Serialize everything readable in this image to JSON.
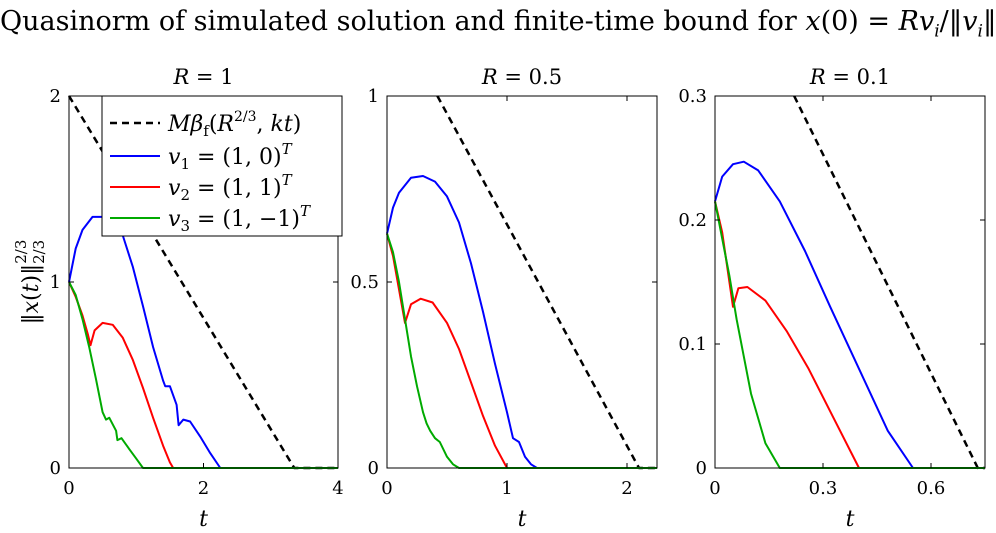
{
  "figure": {
    "title": "Quasinorm of simulated solution and finite-time bound for x(0) = Rvᵢ/‖vᵢ‖₂/₃",
    "ylabel": "‖x(t)‖₂/₃²ᐟ³",
    "xlabel": "t"
  },
  "legend": {
    "placement": "top-right of first panel",
    "entries": [
      {
        "label": "Mβf(R²ᐟ³, kt)",
        "color": "#000000",
        "style": "dashed"
      },
      {
        "label": "v₁ = (1, 0)ᵀ",
        "color": "#0000ff",
        "style": "solid"
      },
      {
        "label": "v₂ = (1, 1)ᵀ",
        "color": "#ff0000",
        "style": "solid"
      },
      {
        "label": "v₃ = (1, −1)ᵀ",
        "color": "#00aa00",
        "style": "solid"
      }
    ]
  },
  "chart_data": [
    {
      "type": "line",
      "title": "R = 1",
      "xlabel": "t",
      "ylabel": "‖x(t)‖₂/₃²ᐟ³",
      "xlim": [
        0,
        4
      ],
      "ylim": [
        0,
        2
      ],
      "xticks": [
        0,
        2,
        4
      ],
      "xticklabels": [
        "0",
        "2",
        "4"
      ],
      "yticks": [
        0,
        1,
        2
      ],
      "yticklabels": [
        "0",
        "1",
        "2"
      ],
      "series": [
        {
          "name": "Mβf(R²ᐟ³, kt)",
          "color": "#000000",
          "dashed": true,
          "x": [
            0,
            3.35,
            4
          ],
          "y": [
            2.0,
            0,
            0
          ]
        },
        {
          "name": "v₁ = (1, 0)ᵀ",
          "color": "#0000ff",
          "x": [
            0,
            0.1,
            0.2,
            0.35,
            0.5,
            0.65,
            0.8,
            0.95,
            1.1,
            1.25,
            1.4,
            1.43,
            1.5,
            1.6,
            1.63,
            1.7,
            1.8,
            1.95,
            2.1,
            2.25,
            2.3,
            4
          ],
          "y": [
            1.0,
            1.18,
            1.28,
            1.35,
            1.35,
            1.32,
            1.25,
            1.08,
            0.87,
            0.65,
            0.47,
            0.44,
            0.44,
            0.34,
            0.23,
            0.26,
            0.25,
            0.17,
            0.08,
            0.0,
            0,
            0
          ]
        },
        {
          "name": "v₂ = (1, 1)ᵀ",
          "color": "#ff0000",
          "x": [
            0,
            0.1,
            0.2,
            0.28,
            0.32,
            0.38,
            0.5,
            0.65,
            0.8,
            0.95,
            1.1,
            1.25,
            1.4,
            1.5,
            1.55,
            4
          ],
          "y": [
            1.0,
            0.92,
            0.82,
            0.72,
            0.66,
            0.74,
            0.78,
            0.77,
            0.7,
            0.58,
            0.43,
            0.27,
            0.12,
            0.03,
            0.0,
            0
          ]
        },
        {
          "name": "v₃ = (1, −1)ᵀ",
          "color": "#00aa00",
          "x": [
            0,
            0.1,
            0.2,
            0.3,
            0.4,
            0.5,
            0.55,
            0.6,
            0.7,
            0.72,
            0.78,
            0.9,
            1.0,
            1.1,
            4
          ],
          "y": [
            1.0,
            0.93,
            0.8,
            0.65,
            0.48,
            0.3,
            0.26,
            0.27,
            0.2,
            0.15,
            0.16,
            0.1,
            0.05,
            0.0,
            0
          ]
        }
      ]
    },
    {
      "type": "line",
      "title": "R = 0.5",
      "xlabel": "t",
      "xlim": [
        0,
        2.25
      ],
      "ylim": [
        0,
        1
      ],
      "xticks": [
        0,
        1,
        2
      ],
      "xticklabels": [
        "0",
        "1",
        "2"
      ],
      "yticks": [
        0,
        0.5,
        1
      ],
      "yticklabels": [
        "0",
        "0.5",
        "1"
      ],
      "series": [
        {
          "name": "Mβf(R²ᐟ³, kt)",
          "color": "#000000",
          "dashed": true,
          "x": [
            0.42,
            2.1,
            2.25
          ],
          "y": [
            1.0,
            0,
            0
          ]
        },
        {
          "name": "v₁ = (1, 0)ᵀ",
          "color": "#0000ff",
          "x": [
            0,
            0.05,
            0.1,
            0.2,
            0.3,
            0.4,
            0.5,
            0.6,
            0.7,
            0.8,
            0.9,
            1.0,
            1.05,
            1.1,
            1.15,
            1.2,
            1.25,
            2.25
          ],
          "y": [
            0.63,
            0.7,
            0.74,
            0.78,
            0.785,
            0.77,
            0.73,
            0.66,
            0.55,
            0.42,
            0.28,
            0.15,
            0.08,
            0.07,
            0.03,
            0.01,
            0.0,
            0
          ]
        },
        {
          "name": "v₂ = (1, 1)ᵀ",
          "color": "#ff0000",
          "x": [
            0,
            0.05,
            0.1,
            0.15,
            0.2,
            0.28,
            0.38,
            0.5,
            0.6,
            0.7,
            0.8,
            0.9,
            1.0,
            2.25
          ],
          "y": [
            0.63,
            0.57,
            0.48,
            0.39,
            0.44,
            0.455,
            0.445,
            0.39,
            0.32,
            0.23,
            0.14,
            0.06,
            0.0,
            0
          ]
        },
        {
          "name": "v₃ = (1, −1)ᵀ",
          "color": "#00aa00",
          "x": [
            0,
            0.05,
            0.1,
            0.15,
            0.2,
            0.25,
            0.3,
            0.33,
            0.36,
            0.4,
            0.44,
            0.5,
            0.55,
            0.6,
            2.25
          ],
          "y": [
            0.63,
            0.58,
            0.5,
            0.4,
            0.3,
            0.22,
            0.15,
            0.12,
            0.1,
            0.08,
            0.07,
            0.03,
            0.01,
            0.0,
            0
          ]
        }
      ]
    },
    {
      "type": "line",
      "title": "R = 0.1",
      "xlabel": "t",
      "xlim": [
        0,
        0.75
      ],
      "ylim": [
        0,
        0.3
      ],
      "xticks": [
        0,
        0.3,
        0.6
      ],
      "xticklabels": [
        "0",
        "0.3",
        "0.6"
      ],
      "yticks": [
        0,
        0.1,
        0.2,
        0.3
      ],
      "yticklabels": [
        "0",
        "0.1",
        "0.2",
        "0.3"
      ],
      "series": [
        {
          "name": "Mβf(R²ᐟ³, kt)",
          "color": "#000000",
          "dashed": true,
          "x": [
            0.22,
            0.73,
            0.75
          ],
          "y": [
            0.3,
            0,
            0
          ]
        },
        {
          "name": "v₁ = (1, 0)ᵀ",
          "color": "#0000ff",
          "x": [
            0,
            0.02,
            0.05,
            0.08,
            0.12,
            0.18,
            0.25,
            0.32,
            0.4,
            0.48,
            0.55,
            0.75
          ],
          "y": [
            0.215,
            0.235,
            0.245,
            0.247,
            0.24,
            0.215,
            0.175,
            0.13,
            0.08,
            0.03,
            0.0,
            0
          ]
        },
        {
          "name": "v₂ = (1, 1)ᵀ",
          "color": "#ff0000",
          "x": [
            0,
            0.02,
            0.035,
            0.045,
            0.05,
            0.065,
            0.09,
            0.14,
            0.2,
            0.26,
            0.33,
            0.4,
            0.75
          ],
          "y": [
            0.215,
            0.19,
            0.16,
            0.14,
            0.13,
            0.145,
            0.146,
            0.135,
            0.11,
            0.08,
            0.04,
            0.0,
            0
          ]
        },
        {
          "name": "v₃ = (1, −1)ᵀ",
          "color": "#00aa00",
          "x": [
            0,
            0.02,
            0.04,
            0.06,
            0.08,
            0.1,
            0.12,
            0.14,
            0.15,
            0.16,
            0.18,
            0.75
          ],
          "y": [
            0.215,
            0.185,
            0.155,
            0.12,
            0.09,
            0.06,
            0.04,
            0.02,
            0.015,
            0.01,
            0.0,
            0
          ]
        }
      ]
    }
  ]
}
